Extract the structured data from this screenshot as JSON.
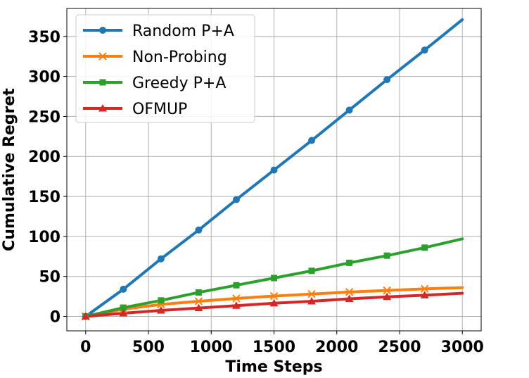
{
  "chart_data": {
    "type": "line",
    "title": "",
    "xlabel": "Time Steps",
    "ylabel": "Cumulative Regret",
    "xlim": [
      -150,
      3150
    ],
    "ylim": [
      -18,
      385
    ],
    "xticks": [
      0,
      500,
      1000,
      1500,
      2000,
      2500,
      3000
    ],
    "xtick_labels": [
      "0",
      "500",
      "1000",
      "1500",
      "2000",
      "2500",
      "3000"
    ],
    "yticks": [
      0,
      50,
      100,
      150,
      200,
      250,
      300,
      350
    ],
    "ytick_labels": [
      "0",
      "50",
      "100",
      "150",
      "200",
      "250",
      "300",
      "350"
    ],
    "grid": true,
    "legend_position": "top-left",
    "marker_x": [
      0,
      300,
      600,
      900,
      1200,
      1500,
      1800,
      2100,
      2400,
      2700
    ],
    "series": [
      {
        "name": "Random P+A",
        "color": "#1f77b4",
        "marker": "circle",
        "x": [
          0,
          300,
          600,
          900,
          1200,
          1500,
          1800,
          2100,
          2400,
          2700,
          3000
        ],
        "values": [
          0,
          34,
          72,
          108,
          146,
          183,
          220,
          258,
          296,
          333,
          371
        ]
      },
      {
        "name": "Non-Probing",
        "color": "#ff7f0e",
        "marker": "x",
        "x": [
          0,
          300,
          600,
          900,
          1200,
          1500,
          1800,
          2100,
          2400,
          2700,
          3000
        ],
        "values": [
          0,
          9,
          15,
          19,
          22.5,
          25.5,
          28,
          30.5,
          32.5,
          34.5,
          36
        ]
      },
      {
        "name": "Greedy P+A",
        "color": "#2ca02c",
        "marker": "square",
        "x": [
          0,
          300,
          600,
          900,
          1200,
          1500,
          1800,
          2100,
          2400,
          2700,
          3000
        ],
        "values": [
          0,
          11,
          20,
          30,
          39,
          48,
          57,
          67,
          76,
          86,
          97
        ]
      },
      {
        "name": "OFMUP",
        "color": "#d62728",
        "marker": "triangle",
        "x": [
          0,
          300,
          600,
          900,
          1200,
          1500,
          1800,
          2100,
          2400,
          2700,
          3000
        ],
        "values": [
          0,
          4,
          7.5,
          10.5,
          13.5,
          16.5,
          19,
          22,
          24.5,
          26.5,
          29
        ]
      }
    ]
  }
}
